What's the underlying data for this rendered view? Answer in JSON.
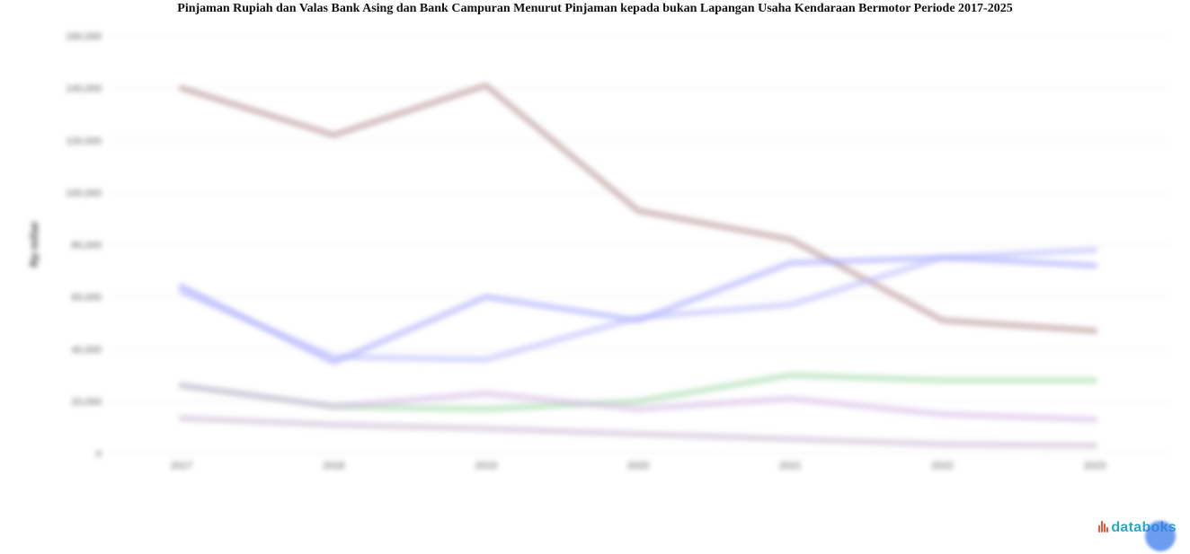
{
  "chart_data": {
    "type": "line",
    "title": "Pinjaman Rupiah dan Valas Bank Asing dan Bank Campuran Menurut Pinjaman kepada bukan Lapangan Usaha Kendaraan Bermotor Periode 2017-2025",
    "ylabel": "Rp miliar",
    "xlabel": "",
    "categories": [
      "2017",
      "2018",
      "2019",
      "2020",
      "2021",
      "2022",
      "2023"
    ],
    "ylim": [
      0,
      160000
    ],
    "yticks": [
      0,
      20000,
      40000,
      60000,
      80000,
      100000,
      120000,
      140000,
      160000
    ],
    "ytick_labels": [
      "0",
      "20,000",
      "40,000",
      "60,000",
      "80,000",
      "100,000",
      "120,000",
      "140,000",
      "160,000"
    ],
    "grid": true,
    "series": [
      {
        "color": "#b08a8a",
        "values": [
          140000,
          122000,
          141000,
          93000,
          82000,
          51000,
          47000
        ]
      },
      {
        "color": "#a3a3ff",
        "values": [
          64000,
          35000,
          60000,
          51000,
          73000,
          75000,
          72000
        ]
      },
      {
        "color": "#b6b6ff",
        "values": [
          62000,
          37000,
          36000,
          52000,
          57000,
          75000,
          78000
        ]
      },
      {
        "color": "#9fd9a5",
        "values": [
          26000,
          18000,
          17000,
          20000,
          30000,
          28000,
          28000
        ]
      },
      {
        "color": "#d4b6e3",
        "values": [
          26000,
          18000,
          23000,
          17000,
          21000,
          15000,
          13000
        ]
      },
      {
        "color": "#c9b6cf",
        "values": [
          13500,
          11000,
          9500,
          7500,
          5500,
          3500,
          3000
        ]
      }
    ]
  },
  "brand": {
    "logo_text": "databoks",
    "logo_icon": "databoks-bars-icon"
  }
}
